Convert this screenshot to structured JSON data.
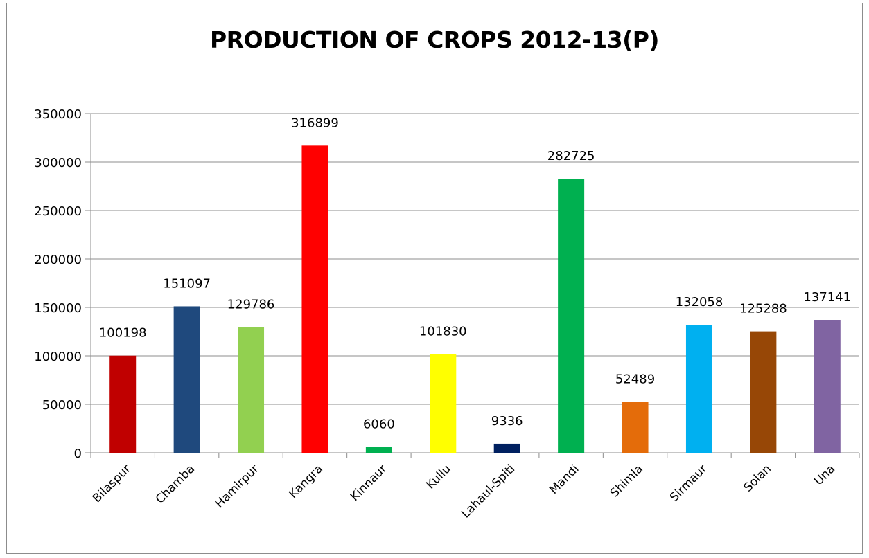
{
  "chart_data": {
    "type": "bar",
    "title": "PRODUCTION OF CROPS 2012-13(P)",
    "xlabel": "",
    "ylabel": "",
    "ylim": [
      0,
      350000
    ],
    "yticks": [
      0,
      50000,
      100000,
      150000,
      200000,
      250000,
      300000,
      350000
    ],
    "grid": true,
    "legend": "none",
    "categories": [
      "Bilaspur",
      "Chamba",
      "Hamirpur",
      "Kangra",
      "Kinnaur",
      "Kullu",
      "Lahaul-Spiti",
      "Mandi",
      "Shimla",
      "Sirmaur",
      "Solan",
      "Una"
    ],
    "values": [
      100198,
      151097,
      129786,
      316899,
      6060,
      101830,
      9336,
      282725,
      52489,
      132058,
      125288,
      137141
    ],
    "data_labels": [
      "100198",
      "151097",
      "129786",
      "316899",
      "6060",
      "101830",
      "9336",
      "282725",
      "52489",
      "132058",
      "125288",
      "137141"
    ],
    "colors": [
      "#c00000",
      "#1f497d",
      "#92d050",
      "#ff0000",
      "#00b050",
      "#ffff00",
      "#002060",
      "#00b050",
      "#e46c0a",
      "#00b0f0",
      "#974706",
      "#8064a2"
    ]
  }
}
